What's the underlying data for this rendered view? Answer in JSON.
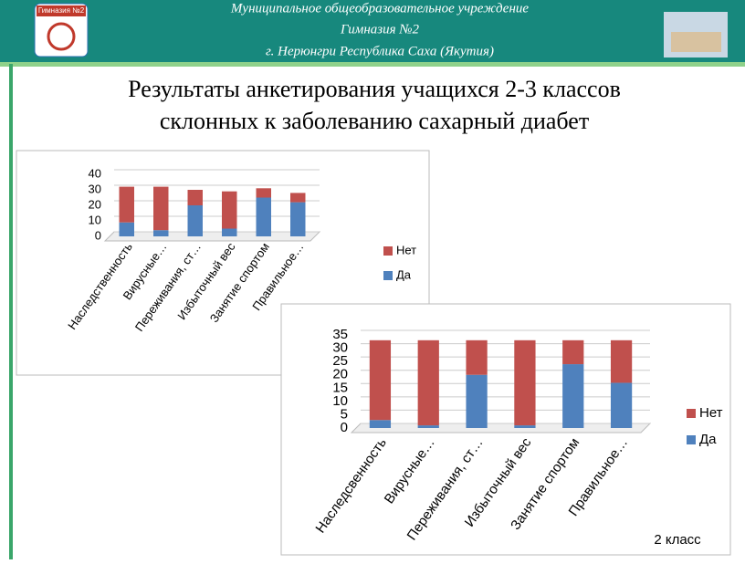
{
  "header": {
    "lines": [
      "Муниципальное общеобразовательное учреждение",
      "Гимназия №2",
      "г. Нерюнгри Республика Саха (Якутия)"
    ],
    "logo": "Гимназия №2"
  },
  "title": [
    "Результаты анкетирования учащихся 2-3  классов",
    "склонных к заболеванию сахарный диабет"
  ],
  "chart_data": [
    {
      "type": "bar",
      "stacked": true,
      "grid": true,
      "categories": [
        "Наследственность",
        "Вирусные…",
        "Переживания, ст…",
        "Избыточный вес",
        "Занятие спортом",
        "Правильное…"
      ],
      "series": [
        {
          "name": "Да",
          "color": "#4f81bd",
          "values": [
            9,
            4,
            20,
            5,
            25,
            22
          ]
        },
        {
          "name": "Нет",
          "color": "#c0504d",
          "values": [
            23,
            28,
            10,
            24,
            6,
            6
          ]
        }
      ],
      "ylim": [
        0,
        40
      ],
      "yticks": [
        0,
        10,
        20,
        30,
        40
      ],
      "legend": "right"
    },
    {
      "type": "bar",
      "stacked": true,
      "grid": true,
      "label": "2 класс",
      "categories": [
        "Наследсвенность",
        "Вирусные…",
        "Переживания, ст…",
        "Избыточный вес",
        "Занятие спортом",
        "Правильное…"
      ],
      "series": [
        {
          "name": "Да",
          "color": "#4f81bd",
          "values": [
            3,
            1,
            20,
            1,
            24,
            17
          ]
        },
        {
          "name": "Нет",
          "color": "#c0504d",
          "values": [
            30,
            32,
            13,
            32,
            9,
            16
          ]
        }
      ],
      "ylim": [
        0,
        35
      ],
      "yticks": [
        0,
        5,
        10,
        15,
        20,
        25,
        30,
        35
      ],
      "legend": "right"
    }
  ]
}
